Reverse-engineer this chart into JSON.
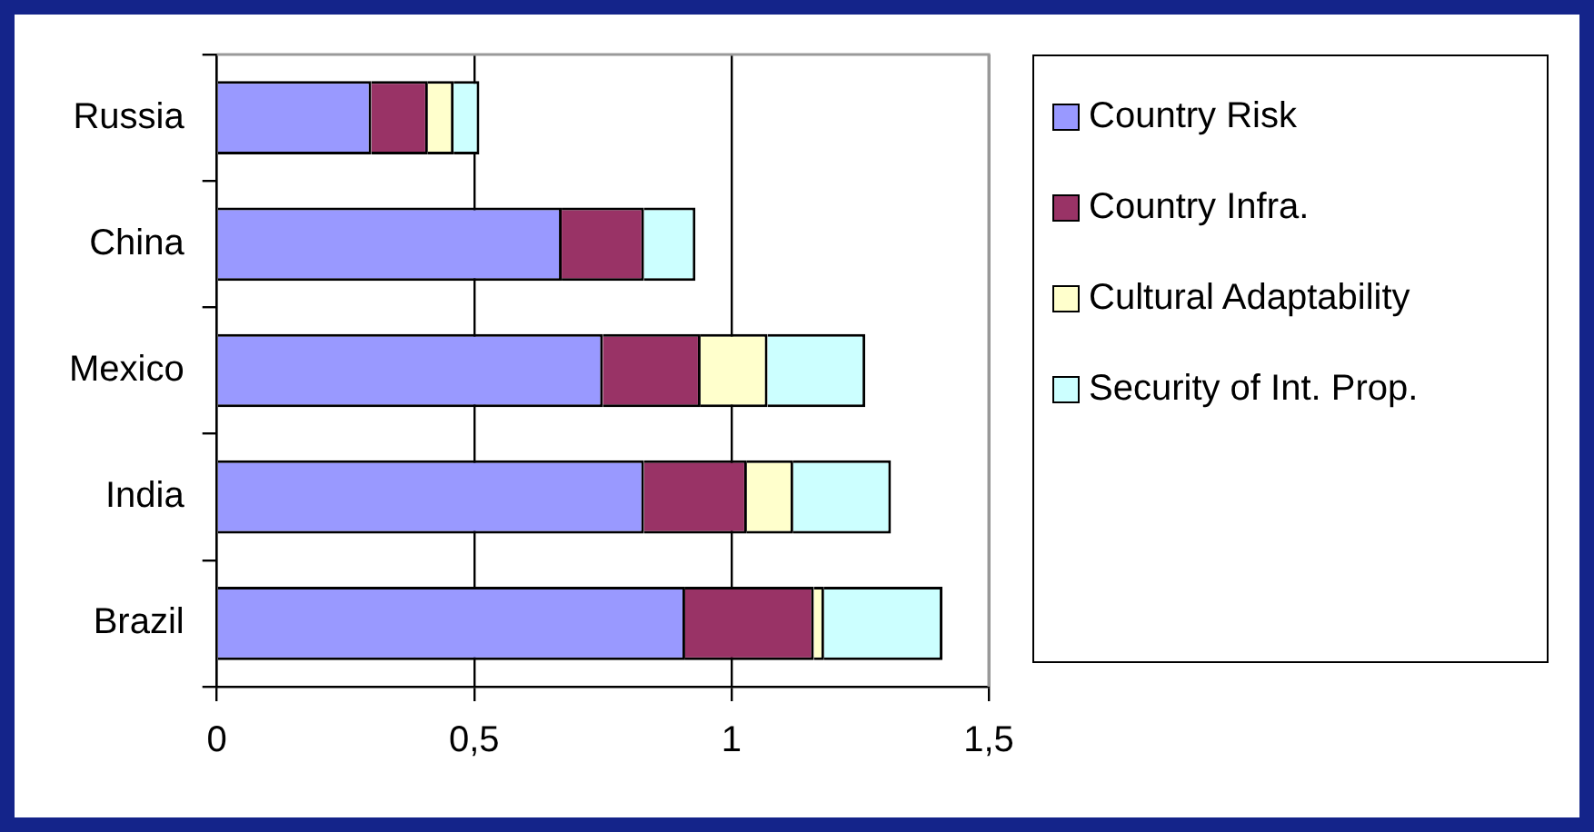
{
  "chart_data": {
    "type": "bar",
    "orientation": "horizontal",
    "stacked": true,
    "categories": [
      "Russia",
      "China",
      "Mexico",
      "India",
      "Brazil"
    ],
    "series": [
      {
        "name": "Country Risk",
        "color": "#9999ff",
        "values": [
          0.3,
          0.67,
          0.75,
          0.83,
          0.91
        ]
      },
      {
        "name": "Country Infra.",
        "color": "#993366",
        "values": [
          0.11,
          0.16,
          0.19,
          0.2,
          0.25
        ]
      },
      {
        "name": "Cultural Adaptability",
        "color": "#ffffcc",
        "values": [
          0.05,
          0,
          0.13,
          0.09,
          0.02
        ]
      },
      {
        "name": "Security of Int. Prop.",
        "color": "#ccffff",
        "values": [
          0.05,
          0.1,
          0.19,
          0.19,
          0.23
        ]
      }
    ],
    "xlim": [
      0,
      1.5
    ],
    "xticks": [
      {
        "value": 0,
        "label": "0"
      },
      {
        "value": 0.5,
        "label": "0,5"
      },
      {
        "value": 1,
        "label": "1"
      },
      {
        "value": 1.5,
        "label": "1,5"
      }
    ],
    "grid": "x",
    "legend": "right"
  }
}
